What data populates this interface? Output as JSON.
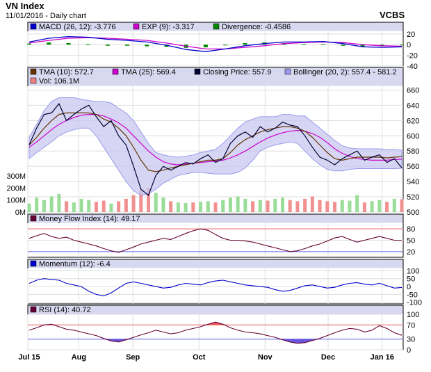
{
  "header": {
    "title": "VN Index",
    "subtitle": "11/01/2016 - Daily chart",
    "brand": "VCBS"
  },
  "chart_data": {
    "type": "line",
    "x_labels": [
      "Jul 15",
      "Aug",
      "Sep",
      "Oct",
      "Nov",
      "Dec",
      "Jan 16"
    ],
    "x_label_days": [
      0,
      17,
      35,
      57,
      79,
      100,
      118
    ],
    "macd": {
      "legend": [
        {
          "label": "MACD (26, 12): -3.776",
          "color": "#0000cc"
        },
        {
          "label": "EXP (9): -3.317",
          "color": "#cc00cc"
        },
        {
          "label": "Divergence: -0.4586",
          "color": "#008800"
        }
      ],
      "yticks": [
        20,
        0,
        -20,
        -40
      ],
      "ylim": [
        -40,
        25
      ],
      "macd_values": [
        5,
        12,
        15,
        14,
        10,
        8,
        5,
        -1,
        -9,
        -13,
        -8,
        -2,
        2,
        5,
        5,
        6,
        2,
        -4,
        -5,
        -4
      ],
      "exp_values": [
        3,
        8,
        12,
        13,
        12,
        10,
        8,
        3,
        -3,
        -8,
        -8,
        -5,
        -2,
        2,
        4,
        5,
        4,
        0,
        -2,
        -3
      ],
      "divergence_values": [
        2,
        4,
        3,
        1,
        -2,
        -2,
        -3,
        -4,
        -6,
        -5,
        0,
        3,
        4,
        3,
        1,
        1,
        -2,
        -4,
        -3,
        -0.5
      ]
    },
    "price": {
      "legend": [
        {
          "label": "TMA (10): 572.7",
          "color": "#663300"
        },
        {
          "label": "TMA (25): 569.4",
          "color": "#cc00cc"
        },
        {
          "label": "Closing Price: 557.9",
          "color": "#000033"
        },
        {
          "label": "Bollinger (20, 2): 557.4 - 581.2",
          "color": "#9999ee"
        },
        {
          "label": "Vol: 106.1M",
          "color": "#f08080"
        }
      ],
      "yticks": [
        500,
        520,
        540,
        560,
        580,
        600,
        620,
        640,
        660
      ],
      "ylim": [
        500,
        665
      ],
      "vol_ticks": [
        "0M",
        "100M",
        "200M",
        "300M"
      ],
      "vol_max": 300,
      "close": [
        588,
        610,
        628,
        630,
        642,
        620,
        628,
        635,
        640,
        625,
        612,
        620,
        600,
        588,
        560,
        530,
        522,
        548,
        560,
        555,
        560,
        565,
        563,
        570,
        575,
        565,
        570,
        590,
        600,
        605,
        598,
        612,
        605,
        610,
        618,
        614,
        612,
        600,
        585,
        572,
        568,
        562,
        570,
        575,
        580,
        568,
        572,
        575,
        565,
        570,
        558
      ],
      "tma10": [
        588,
        598,
        610,
        620,
        628,
        630,
        630,
        630,
        630,
        628,
        622,
        618,
        610,
        600,
        585,
        568,
        555,
        553,
        555,
        558,
        560,
        562,
        564,
        566,
        568,
        568,
        570,
        578,
        588,
        595,
        600,
        605,
        608,
        610,
        612,
        612,
        610,
        606,
        598,
        588,
        578,
        570,
        568,
        570,
        572,
        572,
        572,
        572,
        571,
        572,
        572.7
      ],
      "tma25": [
        585,
        592,
        600,
        608,
        615,
        620,
        624,
        627,
        628,
        628,
        626,
        622,
        617,
        610,
        600,
        590,
        580,
        572,
        566,
        563,
        562,
        563,
        564,
        565,
        566,
        567,
        568,
        571,
        575,
        580,
        586,
        592,
        597,
        601,
        604,
        606,
        607,
        606,
        603,
        598,
        591,
        583,
        577,
        573,
        570,
        569,
        568,
        568,
        568,
        569,
        569.4
      ],
      "boll_upper": [
        598,
        615,
        633,
        645,
        650,
        650,
        650,
        648,
        646,
        645,
        645,
        643,
        636,
        630,
        620,
        605,
        590,
        578,
        575,
        573,
        572,
        573,
        575,
        578,
        580,
        582,
        590,
        600,
        610,
        618,
        622,
        625,
        625,
        625,
        628,
        628,
        626,
        626,
        618,
        610,
        602,
        594,
        587,
        584,
        583,
        583,
        583,
        583,
        582,
        582,
        581.2
      ],
      "boll_lower": [
        570,
        578,
        585,
        592,
        600,
        605,
        608,
        610,
        610,
        600,
        585,
        570,
        555,
        540,
        528,
        522,
        524,
        530,
        538,
        543,
        548,
        550,
        552,
        552,
        551,
        550,
        550,
        550,
        552,
        558,
        568,
        580,
        585,
        588,
        590,
        592,
        590,
        580,
        570,
        562,
        556,
        554,
        554,
        556,
        557,
        557,
        557,
        557,
        557,
        557,
        557.4
      ],
      "volume": [
        70,
        120,
        100,
        130,
        150,
        90,
        80,
        110,
        100,
        85,
        95,
        70,
        90,
        110,
        140,
        180,
        200,
        160,
        120,
        90,
        80,
        75,
        80,
        85,
        90,
        80,
        100,
        120,
        130,
        110,
        90,
        100,
        95,
        110,
        120,
        100,
        90,
        110,
        130,
        100,
        90,
        85,
        100,
        95,
        140,
        80,
        90,
        100,
        85,
        110,
        106
      ]
    },
    "mfi": {
      "legend": [
        {
          "label": "Money Flow Index (14): 49.17",
          "color": "#660033"
        }
      ],
      "yticks": [
        80,
        50,
        20
      ],
      "ylim": [
        5,
        95
      ],
      "values": [
        55,
        62,
        68,
        60,
        55,
        58,
        50,
        45,
        40,
        35,
        28,
        22,
        18,
        25,
        32,
        40,
        45,
        50,
        55,
        52,
        60,
        68,
        75,
        80,
        76,
        65,
        55,
        50,
        50,
        48,
        45,
        40,
        35,
        30,
        25,
        20,
        22,
        28,
        35,
        40,
        48,
        56,
        60,
        52,
        45,
        50,
        55,
        60,
        55,
        50,
        49
      ]
    },
    "momentum": {
      "legend": [
        {
          "label": "Momentum (12): -6.4",
          "color": "#0000cc"
        }
      ],
      "yticks": [
        100,
        50,
        0,
        -50,
        -100
      ],
      "ylim": [
        -110,
        115
      ],
      "values": [
        20,
        40,
        50,
        45,
        40,
        20,
        10,
        0,
        -30,
        -50,
        -60,
        -40,
        -10,
        20,
        30,
        20,
        10,
        0,
        -10,
        -5,
        10,
        20,
        15,
        10,
        25,
        35,
        40,
        30,
        20,
        10,
        5,
        0,
        -5,
        -20,
        -30,
        -25,
        -10,
        5,
        10,
        0,
        -10,
        -5,
        10,
        20,
        25,
        15,
        10,
        20,
        5,
        -10,
        -6
      ]
    },
    "rsi": {
      "legend": [
        {
          "label": "RSI (14): 40.72",
          "color": "#660033"
        }
      ],
      "yticks": [
        100,
        70,
        30,
        0
      ],
      "ylim": [
        0,
        100
      ],
      "values": [
        55,
        62,
        70,
        72,
        65,
        58,
        55,
        50,
        45,
        40,
        32,
        25,
        22,
        28,
        35,
        42,
        48,
        55,
        50,
        45,
        48,
        55,
        60,
        65,
        72,
        78,
        72,
        62,
        55,
        50,
        48,
        45,
        40,
        35,
        28,
        22,
        18,
        20,
        26,
        32,
        40,
        48,
        55,
        60,
        58,
        50,
        55,
        68,
        60,
        48,
        40.72
      ]
    }
  }
}
